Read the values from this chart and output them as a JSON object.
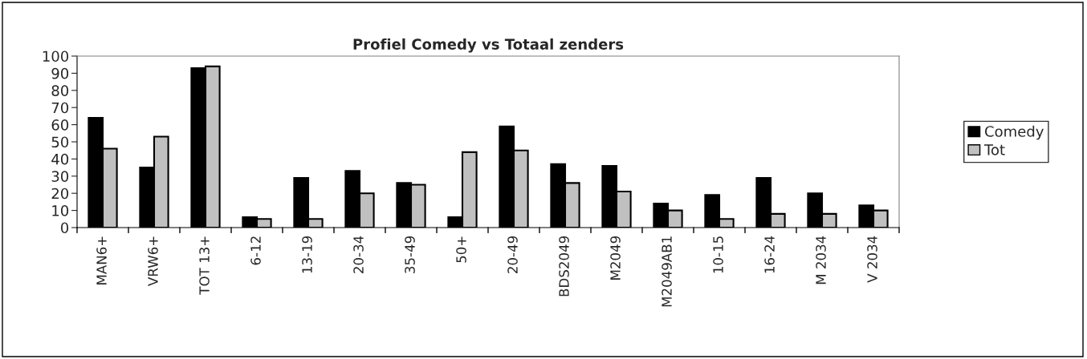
{
  "chart_data": {
    "type": "bar",
    "title": "Profiel Comedy vs Totaal zenders",
    "categories": [
      "MAN6+",
      "VRW6+",
      "TOT 13+",
      "6-12",
      "13-19",
      "20-34",
      "35-49",
      "50+",
      "20-49",
      "BDS2049",
      "M2049",
      "M2049AB1",
      "10-15",
      "16-24",
      "M 2034",
      "V 2034"
    ],
    "series": [
      {
        "name": "Comedy",
        "color": "#000000",
        "values": [
          64,
          35,
          93,
          6,
          29,
          33,
          26,
          6,
          59,
          37,
          36,
          14,
          19,
          29,
          20,
          13
        ]
      },
      {
        "name": "Tot",
        "color": "#c0c0c0",
        "values": [
          46,
          53,
          94,
          5,
          5,
          20,
          25,
          44,
          45,
          26,
          21,
          10,
          5,
          8,
          8,
          10
        ]
      }
    ],
    "ylim": [
      0,
      100
    ],
    "yticks": [
      0,
      10,
      20,
      30,
      40,
      50,
      60,
      70,
      80,
      90,
      100
    ],
    "grid": false,
    "legend": "right"
  }
}
